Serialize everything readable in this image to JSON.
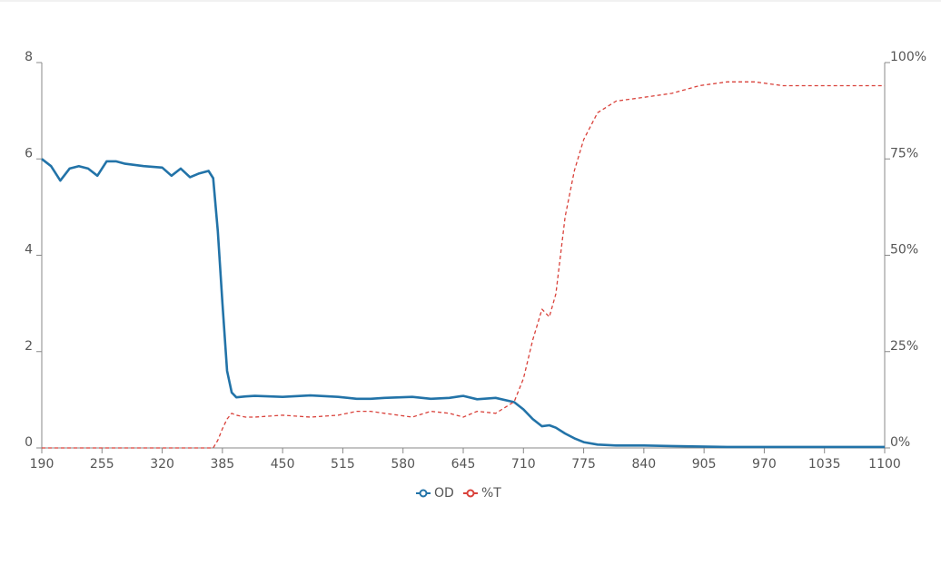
{
  "chart_data": {
    "type": "line",
    "x": [
      190,
      200,
      210,
      220,
      230,
      240,
      250,
      260,
      270,
      280,
      300,
      320,
      330,
      340,
      350,
      360,
      370,
      375,
      380,
      385,
      390,
      395,
      400,
      410,
      420,
      450,
      480,
      510,
      530,
      545,
      560,
      590,
      610,
      630,
      645,
      660,
      680,
      700,
      710,
      720,
      730,
      738,
      745,
      755,
      765,
      775,
      790,
      810,
      840,
      870,
      900,
      930,
      960,
      990,
      1020,
      1060,
      1100
    ],
    "series": [
      {
        "name": "OD",
        "color": "#2273a8",
        "values": [
          6.0,
          5.85,
          5.55,
          5.8,
          5.85,
          5.8,
          5.65,
          5.95,
          5.95,
          5.9,
          5.85,
          5.82,
          5.65,
          5.8,
          5.62,
          5.7,
          5.75,
          5.6,
          4.5,
          3.0,
          1.6,
          1.15,
          1.05,
          1.07,
          1.08,
          1.06,
          1.09,
          1.06,
          1.02,
          1.02,
          1.04,
          1.06,
          1.02,
          1.04,
          1.08,
          1.01,
          1.04,
          0.95,
          0.8,
          0.6,
          0.45,
          0.47,
          0.42,
          0.3,
          0.2,
          0.12,
          0.07,
          0.05,
          0.05,
          0.04,
          0.03,
          0.02,
          0.02,
          0.02,
          0.02,
          0.02,
          0.02
        ]
      },
      {
        "name": "%T",
        "color": "#d9413a",
        "axis": "y2",
        "dashed": true,
        "values": [
          0,
          0,
          0,
          0,
          0,
          0,
          0,
          0,
          0,
          0,
          0,
          0,
          0,
          0,
          0,
          0,
          0,
          0,
          2,
          5,
          7.5,
          9,
          8.5,
          8,
          8,
          8.5,
          8,
          8.5,
          9.5,
          9.5,
          9,
          8,
          9.5,
          9,
          8,
          9.5,
          9,
          12,
          18,
          28,
          36,
          34,
          40,
          60,
          72,
          80,
          87,
          90,
          91,
          92,
          94,
          95,
          95,
          94,
          94,
          94,
          94
        ]
      }
    ],
    "xlim": [
      190,
      1100
    ],
    "xticks": [
      190,
      255,
      320,
      385,
      450,
      515,
      580,
      645,
      710,
      775,
      840,
      905,
      970,
      1035,
      1100
    ],
    "ylim": [
      0,
      8
    ],
    "yticks": [
      0,
      2,
      4,
      6,
      8
    ],
    "y2lim": [
      0,
      100
    ],
    "y2ticks": [
      {
        "value": 0,
        "label": "0%"
      },
      {
        "value": 25,
        "label": "25%"
      },
      {
        "value": 50,
        "label": "50%"
      },
      {
        "value": 75,
        "label": "75%"
      },
      {
        "value": 100,
        "label": "100%"
      }
    ],
    "legend": "bottom"
  }
}
